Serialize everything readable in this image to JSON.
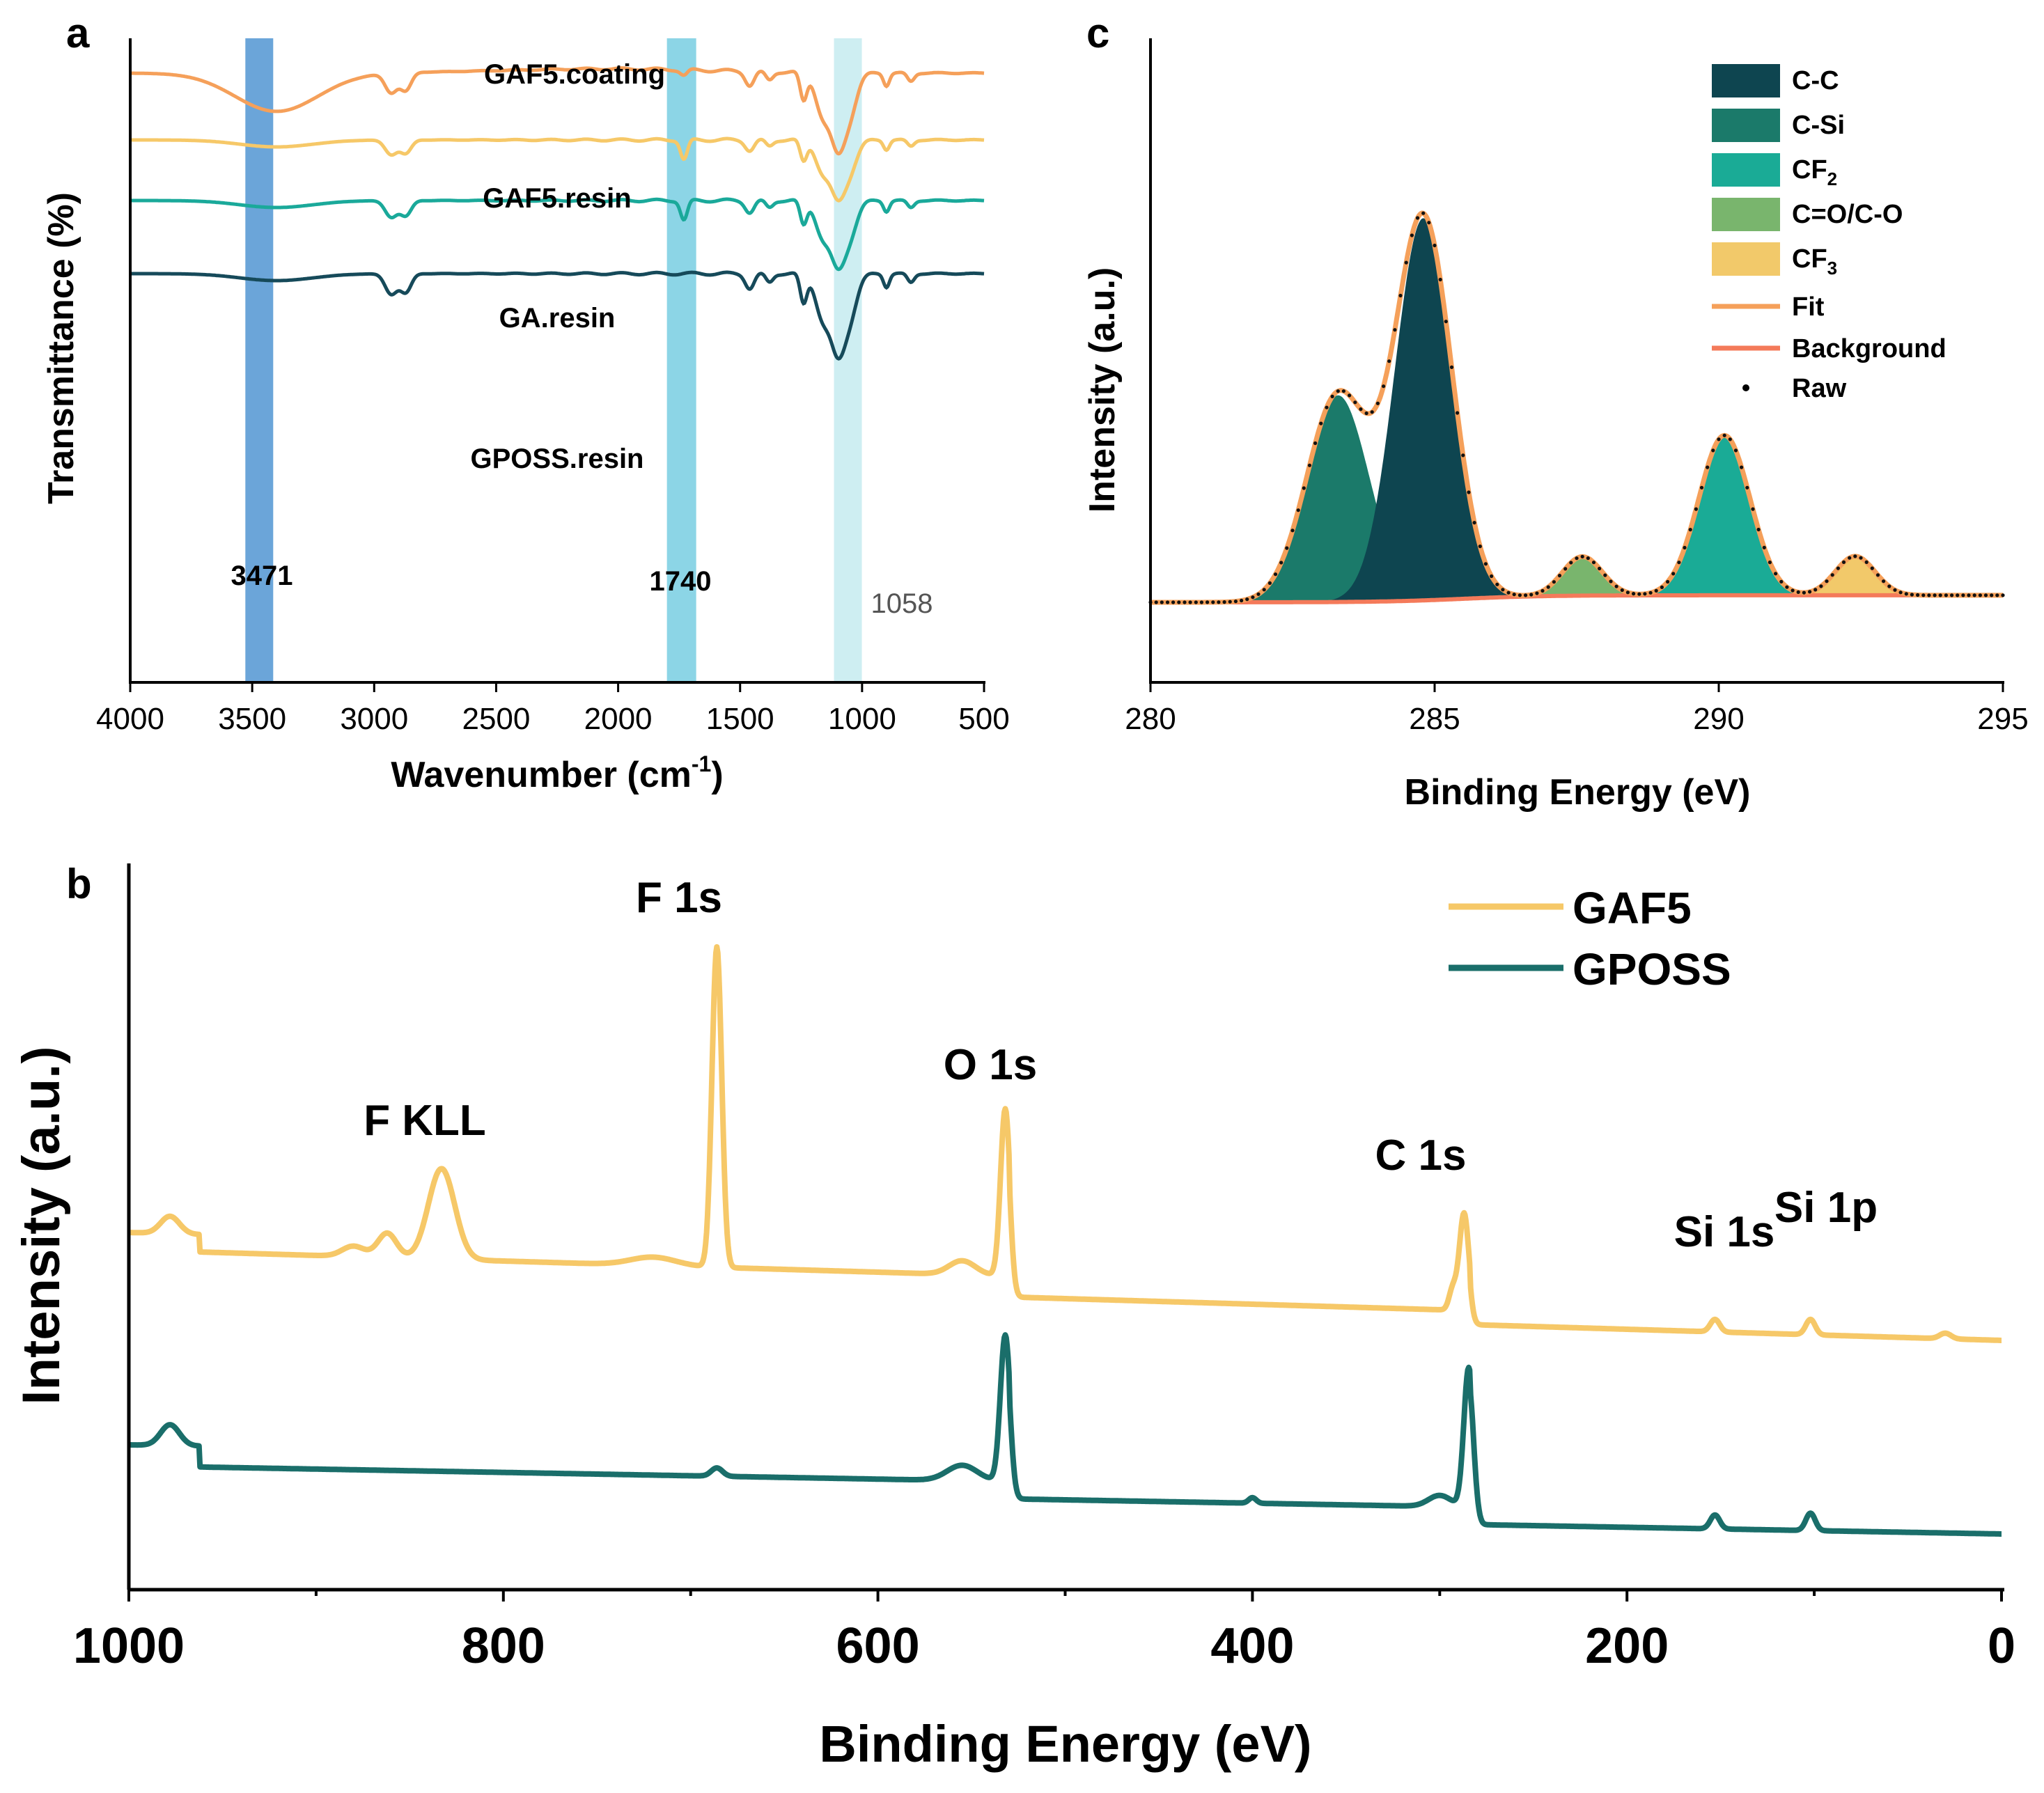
{
  "chart_data": [
    {
      "panel": "a",
      "type": "line",
      "xlabel": "Wavenumber (cm",
      "xlabel_sup": "-1",
      "xlabel_end": ")",
      "ylabel": "Transmittance (%)",
      "xlim": [
        4000,
        500
      ],
      "xticks": [
        "4000",
        "3500",
        "3000",
        "2500",
        "2000",
        "1500",
        "1000",
        "500"
      ],
      "bands": [
        {
          "center": 3471,
          "label": "3471",
          "color": "#5b9bd5"
        },
        {
          "center": 1740,
          "label": "1740",
          "color": "#7fd0e3"
        },
        {
          "center": 1058,
          "label": "1058",
          "color": "#c6ebf0"
        }
      ],
      "series": [
        {
          "name": "GAF5.coating",
          "color": "#f5a05a",
          "baseline": 105
        },
        {
          "name": "GAF5.resin",
          "color": "#f6c868",
          "baseline": 201
        },
        {
          "name": "GA.resin",
          "color": "#1aa99a",
          "baseline": 288
        },
        {
          "name": "GPOSS.resin",
          "color": "#164a5a",
          "baseline": 393
        }
      ]
    },
    {
      "panel": "c",
      "type": "area",
      "xlabel": "Binding Energy (eV)",
      "ylabel": "Intensity (a.u.)",
      "xlim": [
        280,
        295
      ],
      "xticks": [
        "280",
        "285",
        "290",
        "295"
      ],
      "components": [
        {
          "name": "C-C",
          "center": 284.8,
          "height": 0.98,
          "sigma": 0.5,
          "color": "#0e4550"
        },
        {
          "name": "C-Si",
          "center": 283.3,
          "height": 0.53,
          "sigma": 0.55,
          "color": "#1b7a6a"
        },
        {
          "name": "CF",
          "sub": "2",
          "center": 290.1,
          "height": 0.41,
          "sigma": 0.45,
          "color": "#1aab96"
        },
        {
          "name": "C=O/C-O",
          "center": 287.6,
          "height": 0.1,
          "sigma": 0.35,
          "color": "#79b56d"
        },
        {
          "name": "CF",
          "sub": "3",
          "center": 292.4,
          "height": 0.1,
          "sigma": 0.35,
          "color": "#f2c96a"
        }
      ],
      "legend_lines": [
        {
          "name": "Fit",
          "color": "#f5a05a"
        },
        {
          "name": "Background",
          "color": "#f47a5a"
        }
      ],
      "legend_raw": "Raw"
    },
    {
      "panel": "b",
      "type": "line",
      "xlabel": "Binding Energy (eV)",
      "ylabel": "Intensity (a.u.)",
      "xlim": [
        1000,
        0
      ],
      "xticks": [
        "1000",
        "800",
        "600",
        "400",
        "200",
        "0"
      ],
      "series": [
        {
          "name": "GAF5",
          "color": "#f6c868"
        },
        {
          "name": "GPOSS",
          "color": "#1a6e6a"
        }
      ],
      "peak_labels": [
        {
          "text": "F KLL",
          "x": 850
        },
        {
          "text": "F 1s",
          "x": 686
        },
        {
          "text": "O 1s",
          "x": 532
        },
        {
          "text": "C 1s",
          "x": 285
        },
        {
          "text": "Si 1s",
          "x": 149
        },
        {
          "text": "Si 1p",
          "x": 102
        }
      ]
    }
  ],
  "panel_labels": {
    "a": "a",
    "b": "b",
    "c": "c"
  }
}
